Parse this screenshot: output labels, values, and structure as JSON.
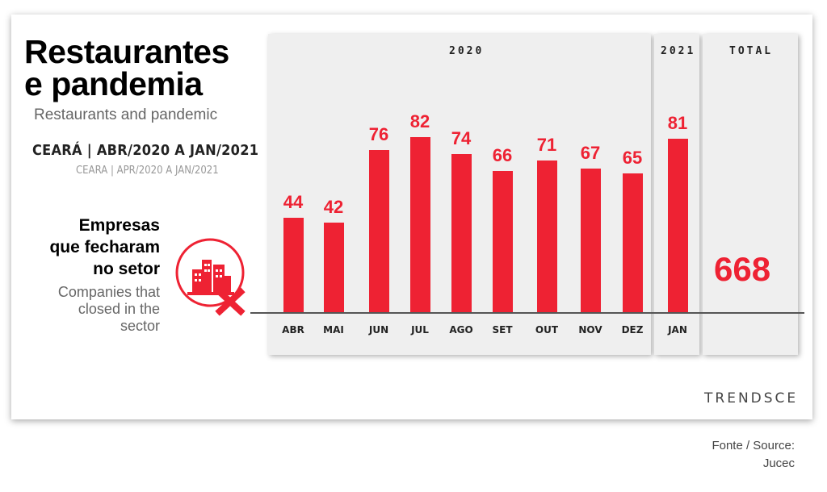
{
  "header": {
    "title_line1": "Restaurantes",
    "title_line2": "e pandemia",
    "subtitle": "Restaurants and pandemic",
    "region_pt": "CEARÁ | ABR/2020 A JAN/2021",
    "region_en": "CEARA | APR/2020 A JAN/2021"
  },
  "legend": {
    "pt_line1": "Empresas",
    "pt_line2": "que fecharam",
    "pt_line3": "no setor",
    "en_line1": "Companies that",
    "en_line2": "closed in the",
    "en_line3": "sector",
    "icon": "closed-buildings-icon"
  },
  "panels": {
    "year_2020": "2020",
    "year_2021": "2021",
    "total_label": "TOTAL"
  },
  "chart_data": {
    "type": "bar",
    "categories": [
      "ABR",
      "MAI",
      "JUN",
      "JUL",
      "AGO",
      "SET",
      "OUT",
      "NOV",
      "DEZ",
      "JAN"
    ],
    "values": [
      44,
      42,
      76,
      82,
      74,
      66,
      71,
      67,
      65,
      81
    ],
    "title": "Restaurantes e pandemia",
    "xlabel": "",
    "ylabel": "",
    "ylim": [
      0,
      90
    ],
    "grid": false,
    "bar_color": "#ee2233",
    "total": "668"
  },
  "footer": {
    "brand": "TRENDSCE",
    "source_line1": "Fonte / Source:",
    "source_line2": "Jucec"
  }
}
